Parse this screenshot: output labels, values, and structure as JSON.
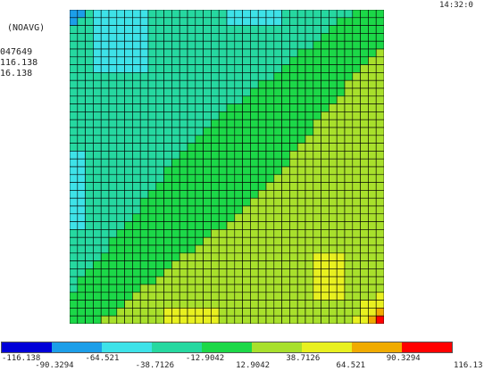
{
  "header": {
    "avg_mode": "(NOAVG)",
    "smn_partial": "047649",
    "smx_partial": "116.138",
    "smx_partial_2": "16.138",
    "time_partial": "14:32:0"
  },
  "contour": {
    "cell_count": 40,
    "colors": [
      "#0000d8",
      "#1c9ee8",
      "#3ee2e8",
      "#26d8a0",
      "#1cd848",
      "#a8e02c",
      "#e8f020",
      "#f0ab00",
      "#ff0000"
    ],
    "border": "#000000"
  },
  "legend": {
    "colors": [
      "#0000d8",
      "#1c9ee8",
      "#3ee2e8",
      "#26d8a0",
      "#1cd848",
      "#a8e02c",
      "#e8f020",
      "#f0ab00",
      "#ff0000"
    ],
    "levels": [
      "-116.138",
      "-90.3294",
      "-64.521",
      "-38.7126",
      "-12.9042",
      "12.9042",
      "38.7126",
      "64.521",
      "90.3294",
      "116.13"
    ]
  }
}
